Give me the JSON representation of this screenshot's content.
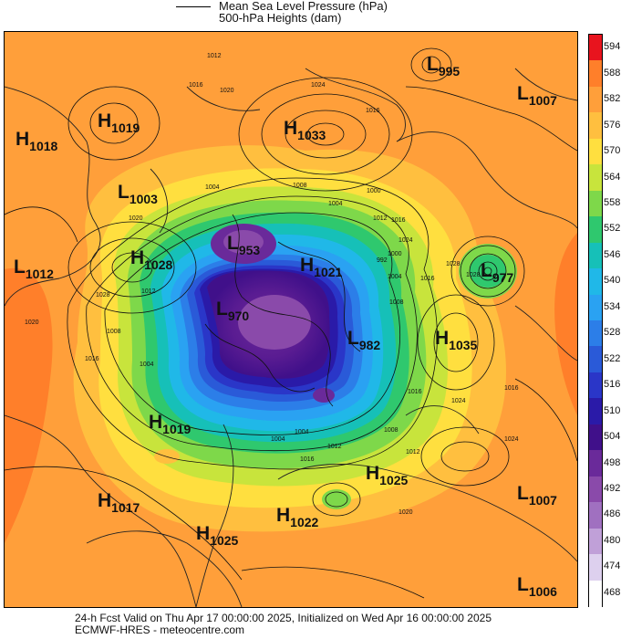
{
  "legend": {
    "line1": "Mean Sea Level Pressure (hPa)",
    "line2": "500-hPa Heights (dam)"
  },
  "colorbar": {
    "levels": [
      "594",
      "588",
      "582",
      "576",
      "570",
      "564",
      "558",
      "552",
      "546",
      "540",
      "534",
      "528",
      "522",
      "516",
      "510",
      "504",
      "498",
      "492",
      "486",
      "480",
      "474",
      "468"
    ],
    "colors": [
      "#e8141e",
      "#ff7f2a",
      "#ff9f3a",
      "#ffbf3f",
      "#ffdf3f",
      "#c8e43c",
      "#7ed84a",
      "#2fc86e",
      "#16c0b8",
      "#20b8e8",
      "#2aa2f2",
      "#2c7ee8",
      "#2a5ad8",
      "#2a36c8",
      "#2a1aa8",
      "#40108a",
      "#6a2a9a",
      "#8a4aaa",
      "#a070c0",
      "#c0a0d8",
      "#ddd0ee",
      "#ffffff"
    ]
  },
  "systems": [
    {
      "type": "H",
      "value": "1019"
    },
    {
      "type": "H",
      "value": "1018"
    },
    {
      "type": "L",
      "value": "1003"
    },
    {
      "type": "H",
      "value": "1033"
    },
    {
      "type": "L",
      "value": "995"
    },
    {
      "type": "L",
      "value": "1007"
    },
    {
      "type": "L",
      "value": "1012"
    },
    {
      "type": "H",
      "value": "1028"
    },
    {
      "type": "L",
      "value": "953"
    },
    {
      "type": "H",
      "value": "1021"
    },
    {
      "type": "L",
      "value": "970"
    },
    {
      "type": "L",
      "value": "977"
    },
    {
      "type": "L",
      "value": "982"
    },
    {
      "type": "H",
      "value": "1035"
    },
    {
      "type": "H",
      "value": "1019"
    },
    {
      "type": "H",
      "value": "1025"
    },
    {
      "type": "H",
      "value": "1017"
    },
    {
      "type": "H",
      "value": "1022"
    },
    {
      "type": "L",
      "value": "1007"
    },
    {
      "type": "H",
      "value": "1025"
    },
    {
      "type": "L",
      "value": "1006"
    }
  ],
  "isobar_labels": [
    "1012",
    "1016",
    "1020",
    "1024",
    "1016",
    "1020",
    "1004",
    "1008",
    "1004",
    "1000",
    "1012",
    "1016",
    "1024",
    "1028",
    "1016",
    "1008",
    "1004",
    "1000",
    "992",
    "1016",
    "1024",
    "1012",
    "1008",
    "1004",
    "1004",
    "1012",
    "1016",
    "1028",
    "1020",
    "1016",
    "1008",
    "1020",
    "1016",
    "1024",
    "1028",
    "1004",
    "1012"
  ],
  "footer": {
    "line1": "24-h Fcst Valid on Thu Apr 17 00:00:00 2025, Initialized on Wed Apr 16 00:00:00 2025",
    "line2": "ECMWF-HRES  - meteocentre.com"
  }
}
